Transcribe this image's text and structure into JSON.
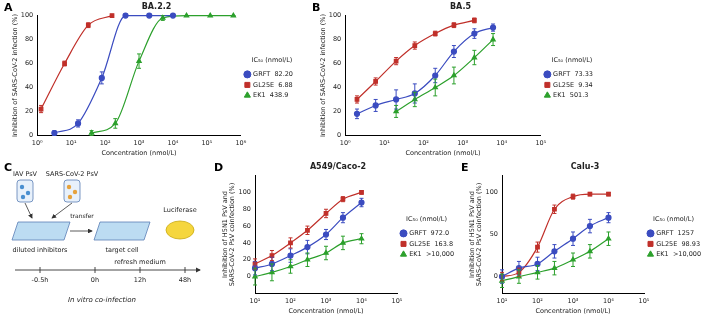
{
  "chart_data": [
    {
      "panel": "A",
      "type": "line",
      "title": "BA.2.2",
      "x_label": "Concentration (nmol/L)",
      "y_label": "Inhibition of SARS-CoV-2 infection (%)",
      "log": "x",
      "grid": false,
      "legend": "right",
      "legend_title": "IC₅₀ (nmol/L)",
      "xlim": [
        1,
        1000000
      ],
      "xticks": [
        {
          "value": 1,
          "label": "10⁰"
        },
        {
          "value": 10,
          "label": "10¹"
        },
        {
          "value": 100,
          "label": "10²"
        },
        {
          "value": 1000,
          "label": "10³"
        },
        {
          "value": 10000,
          "label": "10⁴"
        },
        {
          "value": 100000,
          "label": "10⁵"
        },
        {
          "value": 1000000,
          "label": "10⁶"
        }
      ],
      "ylim": [
        0,
        100
      ],
      "yticks": [
        0,
        20,
        40,
        60,
        80,
        100
      ],
      "series": [
        {
          "name": "GRFT",
          "ic50": "82.20",
          "color": "#3b4cc0",
          "marker": "circle",
          "x": [
            3.2,
            16,
            80,
            400,
            2000,
            10000
          ],
          "values": [
            2,
            10,
            48,
            100,
            100,
            100
          ],
          "errors": [
            2,
            3,
            5,
            0,
            0,
            0
          ]
        },
        {
          "name": "GL25E",
          "ic50": "6.88",
          "color": "#c0302a",
          "marker": "square",
          "x": [
            1.3,
            6.4,
            32,
            160
          ],
          "values": [
            22,
            60,
            92,
            100
          ],
          "errors": [
            3,
            2,
            2,
            0
          ]
        },
        {
          "name": "EK1",
          "ic50": "438.9",
          "color": "#2ca02c",
          "marker": "triangle",
          "x": [
            40,
            200,
            1000,
            5000,
            25000,
            125000,
            600000
          ],
          "values": [
            2,
            10,
            62,
            98,
            100,
            100,
            100
          ],
          "errors": [
            2,
            4,
            6,
            2,
            0,
            0,
            0
          ]
        }
      ]
    },
    {
      "panel": "B",
      "type": "line",
      "title": "BA.5",
      "x_label": "Concentration (nmol/L)",
      "y_label": "Inhibition of SARS-CoV-2 infection (%)",
      "log": "x",
      "grid": false,
      "legend": "right",
      "legend_title": "IC₅₀ (nmol/L)",
      "xlim": [
        1,
        100000
      ],
      "xticks": [
        {
          "value": 1,
          "label": "10⁰"
        },
        {
          "value": 10,
          "label": "10¹"
        },
        {
          "value": 100,
          "label": "10²"
        },
        {
          "value": 1000,
          "label": "10³"
        },
        {
          "value": 10000,
          "label": "10⁴"
        },
        {
          "value": 100000,
          "label": "10⁵"
        }
      ],
      "ylim": [
        0,
        100
      ],
      "yticks": [
        0,
        20,
        40,
        60,
        80,
        100
      ],
      "series": [
        {
          "name": "GRFT",
          "ic50": "73.33",
          "color": "#3b4cc0",
          "marker": "circle",
          "x": [
            2,
            6,
            20,
            60,
            200,
            600,
            2000,
            6000
          ],
          "values": [
            18,
            25,
            30,
            35,
            50,
            70,
            85,
            90
          ],
          "errors": [
            4,
            5,
            8,
            8,
            6,
            5,
            4,
            3
          ]
        },
        {
          "name": "GL25E",
          "ic50": "9.34",
          "color": "#c0302a",
          "marker": "square",
          "x": [
            2,
            6,
            20,
            60,
            200,
            600,
            2000
          ],
          "values": [
            30,
            45,
            62,
            75,
            85,
            92,
            96
          ],
          "errors": [
            3,
            3,
            3,
            3,
            2,
            2,
            2
          ]
        },
        {
          "name": "EK1",
          "ic50": "501.3",
          "color": "#2ca02c",
          "marker": "triangle",
          "x": [
            20,
            60,
            200,
            600,
            2000,
            6000
          ],
          "values": [
            20,
            30,
            40,
            50,
            65,
            80
          ],
          "errors": [
            5,
            6,
            7,
            7,
            6,
            5
          ]
        }
      ]
    },
    {
      "panel": "D",
      "type": "line",
      "title": "A549/Caco-2",
      "x_label": "Concentration (nmol/L)",
      "y_label": [
        "Inhibition of H5N1 PsV and",
        "SARS-CoV-2 PsV coinfection (%)"
      ],
      "log": "x",
      "grid": false,
      "legend": "right",
      "legend_title": "IC₅₀ (nmol/L)",
      "xlim": [
        10,
        100000
      ],
      "xticks": [
        {
          "value": 10,
          "label": "10¹"
        },
        {
          "value": 100,
          "label": "10²"
        },
        {
          "value": 1000,
          "label": "10³"
        },
        {
          "value": 10000,
          "label": "10⁴"
        },
        {
          "value": 100000,
          "label": "10⁵"
        }
      ],
      "ylim": [
        -20,
        120
      ],
      "yticks": [
        0,
        20,
        40,
        60,
        80,
        100
      ],
      "series": [
        {
          "name": "GRFT",
          "ic50": "972.0",
          "color": "#3b4cc0",
          "marker": "circle",
          "x": [
            10,
            30,
            100,
            300,
            1000,
            3000,
            10000
          ],
          "values": [
            10,
            15,
            25,
            35,
            50,
            70,
            88
          ],
          "errors": [
            8,
            8,
            8,
            8,
            6,
            6,
            5
          ]
        },
        {
          "name": "GL25E",
          "ic50": "163.8",
          "color": "#c0302a",
          "marker": "square",
          "x": [
            10,
            30,
            100,
            300,
            1000,
            3000,
            10000
          ],
          "values": [
            15,
            25,
            40,
            55,
            75,
            92,
            100
          ],
          "errors": [
            6,
            6,
            6,
            5,
            5,
            3,
            2
          ]
        },
        {
          "name": "EK1",
          "ic50": ">10,000",
          "color": "#2ca02c",
          "marker": "triangle",
          "x": [
            10,
            30,
            100,
            300,
            1000,
            3000,
            10000
          ],
          "values": [
            0,
            5,
            12,
            20,
            28,
            40,
            45
          ],
          "errors": [
            10,
            10,
            8,
            8,
            8,
            8,
            6
          ]
        }
      ]
    },
    {
      "panel": "E",
      "type": "line",
      "title": "Calu-3",
      "x_label": "Concentration (nmol/L)",
      "y_label": [
        "Inhibition of H5N1 PsV and",
        "SARS-CoV-2 PsV coinfection (%)"
      ],
      "log": "x",
      "grid": false,
      "legend": "right",
      "legend_title": "IC₅₀ (nmol/L)",
      "xlim": [
        10,
        100000
      ],
      "xticks": [
        {
          "value": 10,
          "label": "10¹"
        },
        {
          "value": 100,
          "label": "10²"
        },
        {
          "value": 1000,
          "label": "10³"
        },
        {
          "value": 10000,
          "label": "10⁴"
        },
        {
          "value": 100000,
          "label": "10⁵"
        }
      ],
      "ylim": [
        -20,
        120
      ],
      "yticks": [
        0,
        50,
        100
      ],
      "series": [
        {
          "name": "GRFT",
          "ic50": "1257",
          "color": "#3b4cc0",
          "marker": "circle",
          "x": [
            10,
            30,
            100,
            300,
            1000,
            3000,
            10000
          ],
          "values": [
            0,
            10,
            15,
            30,
            45,
            60,
            70
          ],
          "errors": [
            8,
            8,
            8,
            8,
            8,
            8,
            6
          ]
        },
        {
          "name": "GL25E",
          "ic50": "98.93",
          "color": "#c0302a",
          "marker": "square",
          "x": [
            10,
            30,
            100,
            300,
            1000,
            3000,
            10000
          ],
          "values": [
            0,
            5,
            35,
            80,
            95,
            98,
            98
          ],
          "errors": [
            5,
            5,
            6,
            5,
            3,
            2,
            2
          ]
        },
        {
          "name": "EK1",
          "ic50": ">10,000",
          "color": "#2ca02c",
          "marker": "triangle",
          "x": [
            10,
            30,
            100,
            300,
            1000,
            3000,
            10000
          ],
          "values": [
            -5,
            0,
            5,
            10,
            20,
            30,
            45
          ],
          "errors": [
            8,
            8,
            8,
            8,
            8,
            8,
            8
          ]
        }
      ]
    }
  ],
  "diagram": {
    "panel": "C",
    "virus_labels": [
      "IAV PsV",
      "SARS-CoV-2 PsV"
    ],
    "transfer": "transfer",
    "plates": [
      "diluted inhibitors",
      "target cell"
    ],
    "step": "refresh medium",
    "readout": "Luciferase",
    "timeline": [
      "-0.5h",
      "0h",
      "12h",
      "48h"
    ],
    "caption": "In vitro co-infection"
  }
}
